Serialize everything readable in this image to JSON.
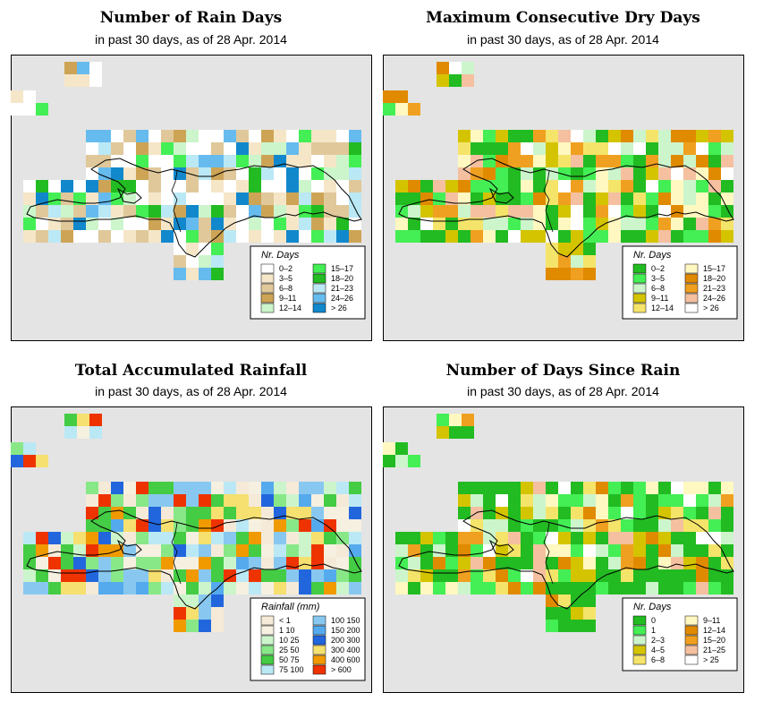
{
  "panels": [
    {
      "id": "rain-days",
      "title": "Number of Rain Days",
      "subtitle": "in past 30 days, as of  28 Apr. 2014",
      "legend": {
        "title": "Nr. Days",
        "items": [
          {
            "label": "0–2",
            "color": "#ffffff"
          },
          {
            "label": "3–5",
            "color": "#f5e6c8"
          },
          {
            "label": "6–8",
            "color": "#e0c89a"
          },
          {
            "label": "9–11",
            "color": "#cda455"
          },
          {
            "label": "12–14",
            "color": "#ccf5cc"
          },
          {
            "label": "15–17",
            "color": "#44ee55"
          },
          {
            "label": "18–20",
            "color": "#22bb22"
          },
          {
            "label": "21–23",
            "color": "#bbe8f5"
          },
          {
            "label": "24–26",
            "color": "#66bbee"
          },
          {
            "label": "> 26",
            "color": "#1188cc"
          }
        ]
      }
    },
    {
      "id": "max-dry-days",
      "title": "Maximum Consecutive Dry Days",
      "subtitle": "in past 30 days, as of  28 Apr. 2014",
      "legend": {
        "title": "Nr. Days",
        "items": [
          {
            "label": "0–2",
            "color": "#22bb22"
          },
          {
            "label": "3–5",
            "color": "#44ee55"
          },
          {
            "label": "6–8",
            "color": "#ccf5cc"
          },
          {
            "label": "9–11",
            "color": "#d4c400"
          },
          {
            "label": "12–14",
            "color": "#f5e46a"
          },
          {
            "label": "15–17",
            "color": "#fff8c0"
          },
          {
            "label": "18–20",
            "color": "#e08a00"
          },
          {
            "label": "21–23",
            "color": "#f0a020"
          },
          {
            "label": "24–26",
            "color": "#f5c0a0"
          },
          {
            "label": "> 26",
            "color": "#ffffff"
          }
        ]
      }
    },
    {
      "id": "total-rainfall",
      "title": "Total Accumulated Rainfall",
      "subtitle": "in past 30 days, as of  28 Apr. 2014",
      "legend": {
        "title": "Rainfall (mm)",
        "items": [
          {
            "label": "< 1",
            "color": "#f5ead8"
          },
          {
            "label": "1   10",
            "color": "#f5f0e0"
          },
          {
            "label": "10   25",
            "color": "#ccf5cc"
          },
          {
            "label": "25   50",
            "color": "#88e888"
          },
          {
            "label": "50   75",
            "color": "#44cc44"
          },
          {
            "label": "75  100",
            "color": "#bbe8f5"
          },
          {
            "label": "100  150",
            "color": "#88c8f0"
          },
          {
            "label": "150  200",
            "color": "#55aaee"
          },
          {
            "label": "200  300",
            "color": "#2266dd"
          },
          {
            "label": "300  400",
            "color": "#f5e070"
          },
          {
            "label": "400  600",
            "color": "#f09a00"
          },
          {
            "label": "> 600",
            "color": "#ee3300"
          }
        ]
      }
    },
    {
      "id": "days-since-rain",
      "title": "Number of Days Since Rain",
      "subtitle": "in past 30 days, as of  28 Apr. 2014",
      "legend": {
        "title": "Nr. Days",
        "items": [
          {
            "label": "0",
            "color": "#22bb22"
          },
          {
            "label": "1",
            "color": "#44ee55"
          },
          {
            "label": "2–3",
            "color": "#ccf5cc"
          },
          {
            "label": "4–5",
            "color": "#d4c400"
          },
          {
            "label": "6–8",
            "color": "#f5e46a"
          },
          {
            "label": "9–11",
            "color": "#fff8c0"
          },
          {
            "label": "12–14",
            "color": "#e08a00"
          },
          {
            "label": "15–20",
            "color": "#f0a020"
          },
          {
            "label": "21–25",
            "color": "#f5c0a0"
          },
          {
            "label": "> 25",
            "color": "#ffffff"
          }
        ]
      }
    }
  ]
}
